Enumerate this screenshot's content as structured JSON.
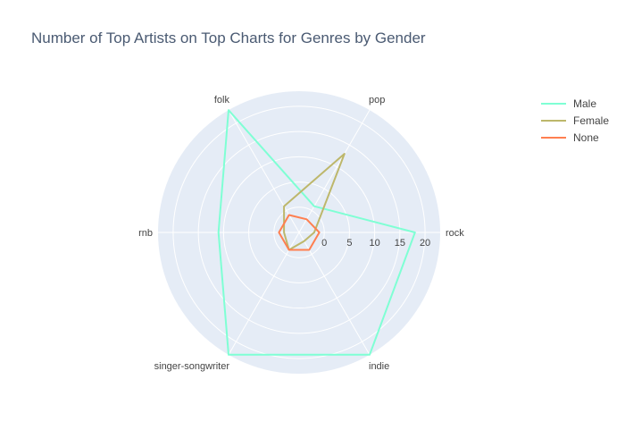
{
  "chart_data": {
    "type": "radar",
    "title": "Number of Top Artists on Top Charts for Genres by Gender",
    "categories": [
      "rock",
      "pop",
      "folk",
      "rnb",
      "singer-songwriter",
      "indie"
    ],
    "radial_axis": {
      "range": [
        -5,
        23
      ],
      "ticks": [
        0,
        5,
        10,
        15,
        20
      ],
      "tick_labels": [
        "0",
        "5",
        "10",
        "15",
        "20"
      ]
    },
    "series": [
      {
        "name": "Male",
        "color": "#7fffd4",
        "values": [
          18,
          1,
          23,
          11,
          23,
          23
        ]
      },
      {
        "name": "Female",
        "color": "#bdb76b",
        "values": [
          -2,
          13,
          1,
          -2,
          -1,
          -3
        ]
      },
      {
        "name": "None",
        "color": "#ff7f50",
        "values": [
          -1,
          -2,
          -1,
          -1,
          -1,
          -1
        ]
      }
    ],
    "legend_position": "top-right",
    "grid": true
  }
}
